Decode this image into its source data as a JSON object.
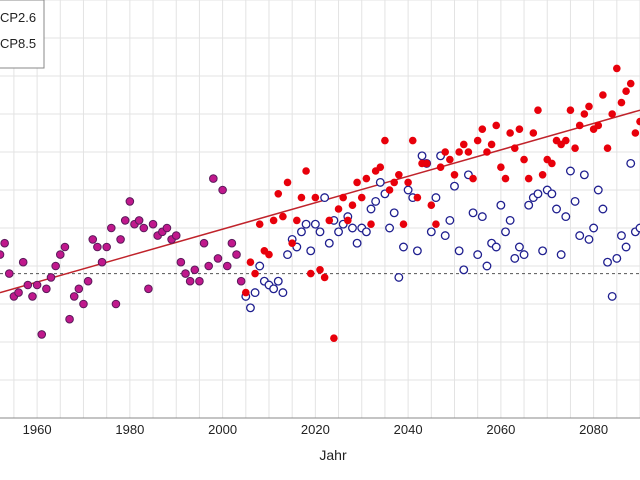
{
  "chart_data": {
    "type": "scatter",
    "title": "",
    "xlabel": "Jahr",
    "ylabel": "",
    "xlim": [
      1952,
      2090
    ],
    "ylim": [
      0,
      11
    ],
    "x_ticks": [
      1960,
      1980,
      2000,
      2020,
      2040,
      2060,
      2080
    ],
    "grid": true,
    "legend_position": "top-left",
    "legend": [
      "CP2.6",
      "CP8.5"
    ],
    "reference_line": {
      "y": 3.8,
      "style": "dashed",
      "color": "#555555"
    },
    "series": [
      {
        "name": "CP2.6",
        "marker": "open-circle",
        "color": "#1f1f8f",
        "x": [
          2005,
          2006,
          2007,
          2008,
          2009,
          2010,
          2011,
          2012,
          2013,
          2014,
          2015,
          2016,
          2017,
          2018,
          2019,
          2020,
          2021,
          2022,
          2023,
          2024,
          2025,
          2026,
          2027,
          2028,
          2029,
          2030,
          2031,
          2032,
          2033,
          2034,
          2035,
          2036,
          2037,
          2038,
          2039,
          2040,
          2041,
          2042,
          2043,
          2044,
          2045,
          2046,
          2047,
          2048,
          2049,
          2050,
          2051,
          2052,
          2053,
          2054,
          2055,
          2056,
          2057,
          2058,
          2059,
          2060,
          2061,
          2062,
          2063,
          2064,
          2065,
          2066,
          2067,
          2068,
          2069,
          2070,
          2071,
          2072,
          2073,
          2074,
          2075,
          2076,
          2077,
          2078,
          2079,
          2080,
          2081,
          2082,
          2083,
          2084,
          2085,
          2086,
          2087,
          2088,
          2089,
          2090
        ],
        "y": [
          3.2,
          2.9,
          3.3,
          4.0,
          3.6,
          3.5,
          3.4,
          3.6,
          3.3,
          4.3,
          4.7,
          4.5,
          4.9,
          5.1,
          4.4,
          5.1,
          4.9,
          5.8,
          4.6,
          5.2,
          4.9,
          5.1,
          5.3,
          5.0,
          4.6,
          5.0,
          4.9,
          5.5,
          5.7,
          6.2,
          5.9,
          5.0,
          5.4,
          3.7,
          4.5,
          6.0,
          5.8,
          4.4,
          6.9,
          6.7,
          4.9,
          5.8,
          6.9,
          4.8,
          5.2,
          6.1,
          4.4,
          3.9,
          6.4,
          5.4,
          4.3,
          5.3,
          4.0,
          4.6,
          4.5,
          5.6,
          4.9,
          5.2,
          4.2,
          4.5,
          4.3,
          5.6,
          5.8,
          5.9,
          4.4,
          6.0,
          5.9,
          5.5,
          4.3,
          5.3,
          6.5,
          5.7,
          4.8,
          6.4,
          4.7,
          5.0,
          6.0,
          5.5,
          4.1,
          3.2,
          4.2,
          4.8,
          4.5,
          6.7,
          4.9,
          5.0
        ],
        "note": "2005-2090 values are estimated from the plotted points"
      },
      {
        "name": "CP8.5",
        "marker": "filled-circle",
        "color": "#e8000b",
        "x": [
          2005,
          2006,
          2007,
          2008,
          2009,
          2010,
          2011,
          2012,
          2013,
          2014,
          2015,
          2016,
          2017,
          2018,
          2019,
          2020,
          2021,
          2022,
          2023,
          2024,
          2025,
          2026,
          2027,
          2028,
          2029,
          2030,
          2031,
          2032,
          2033,
          2034,
          2035,
          2036,
          2037,
          2038,
          2039,
          2040,
          2041,
          2042,
          2043,
          2044,
          2045,
          2046,
          2047,
          2048,
          2049,
          2050,
          2051,
          2052,
          2053,
          2054,
          2055,
          2056,
          2057,
          2058,
          2059,
          2060,
          2061,
          2062,
          2063,
          2064,
          2065,
          2066,
          2067,
          2068,
          2069,
          2070,
          2071,
          2072,
          2073,
          2074,
          2075,
          2076,
          2077,
          2078,
          2079,
          2080,
          2081,
          2082,
          2083,
          2084,
          2085,
          2086,
          2087,
          2088,
          2089,
          2090
        ],
        "y": [
          3.3,
          4.1,
          3.8,
          5.1,
          4.4,
          4.3,
          5.2,
          5.9,
          5.3,
          6.2,
          4.6,
          5.2,
          5.8,
          6.5,
          3.8,
          5.8,
          3.9,
          3.7,
          5.2,
          2.1,
          5.5,
          5.8,
          5.2,
          5.6,
          6.2,
          5.8,
          6.3,
          5.1,
          6.5,
          6.6,
          7.3,
          6.0,
          6.2,
          6.4,
          5.1,
          6.2,
          7.3,
          5.8,
          6.7,
          6.7,
          5.6,
          5.1,
          6.6,
          7.0,
          6.8,
          6.4,
          7.0,
          7.2,
          7.0,
          6.3,
          7.3,
          7.6,
          7.0,
          7.2,
          7.7,
          6.6,
          6.3,
          7.5,
          7.1,
          7.6,
          6.8,
          6.3,
          7.5,
          8.1,
          6.4,
          6.8,
          6.7,
          7.3,
          7.2,
          7.3,
          8.1,
          7.1,
          7.7,
          8.0,
          8.2,
          7.6,
          7.7,
          8.5,
          7.1,
          8.0,
          9.2,
          8.3,
          8.6,
          8.8,
          7.5,
          7.8
        ],
        "note": "2005-2090 values are estimated from the plotted points"
      },
      {
        "name": "",
        "marker": "filled-circle-purple",
        "color": "#9b1b7a",
        "x": [
          1952,
          1953,
          1954,
          1955,
          1956,
          1957,
          1958,
          1959,
          1960,
          1961,
          1962,
          1963,
          1964,
          1965,
          1966,
          1967,
          1968,
          1969,
          1970,
          1971,
          1972,
          1973,
          1974,
          1975,
          1976,
          1977,
          1978,
          1979,
          1980,
          1981,
          1982,
          1983,
          1984,
          1985,
          1986,
          1987,
          1988,
          1989,
          1990,
          1991,
          1992,
          1993,
          1994,
          1995,
          1996,
          1997,
          1998,
          1999,
          2000,
          2001,
          2002,
          2003,
          2004
        ],
        "y": [
          4.3,
          4.6,
          3.8,
          3.2,
          3.3,
          4.1,
          3.5,
          3.2,
          3.5,
          2.2,
          3.4,
          3.7,
          4.0,
          4.3,
          4.5,
          2.6,
          3.2,
          3.4,
          3.0,
          3.6,
          4.7,
          4.5,
          4.1,
          4.5,
          5.0,
          3.0,
          4.7,
          5.2,
          5.7,
          5.1,
          5.2,
          5.0,
          3.4,
          5.1,
          4.8,
          4.9,
          5.0,
          4.7,
          4.8,
          4.1,
          3.8,
          3.6,
          3.9,
          3.6,
          4.6,
          4.0,
          6.3,
          4.2,
          6.0,
          4.0,
          4.6,
          4.3,
          3.6
        ],
        "note": "observed period values estimated from plotted points"
      }
    ],
    "trend_line": {
      "x": [
        1952,
        2090
      ],
      "y": [
        3.3,
        8.1
      ],
      "color": "#c0232b"
    }
  }
}
